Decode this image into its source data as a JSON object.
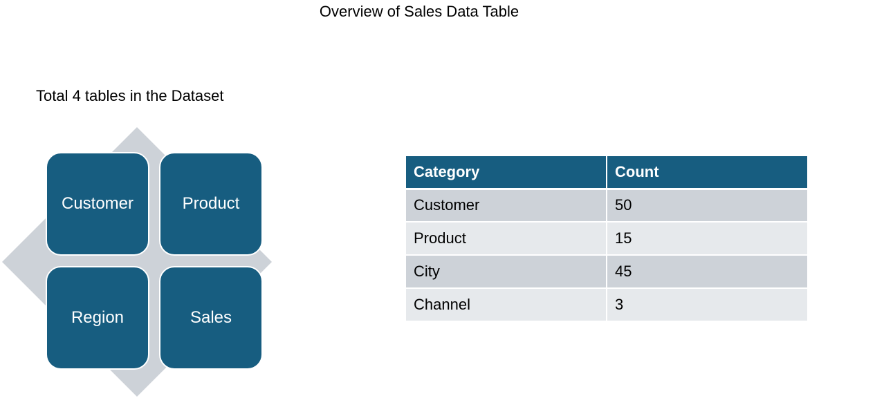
{
  "title": "Overview of Sales Data Table",
  "subtitle": "Total 4 tables in the Dataset",
  "diagram": {
    "tiles": [
      "Customer",
      "Product",
      "Region",
      "Sales"
    ],
    "tile_color": "#175d80",
    "backdrop_color": "#cdd2d8"
  },
  "table": {
    "headers": [
      "Category",
      "Count"
    ],
    "header_color": "#175d80",
    "rows": [
      [
        "Customer",
        "50"
      ],
      [
        "Product",
        "15"
      ],
      [
        "City",
        "45"
      ],
      [
        "Channel",
        "3"
      ]
    ]
  }
}
